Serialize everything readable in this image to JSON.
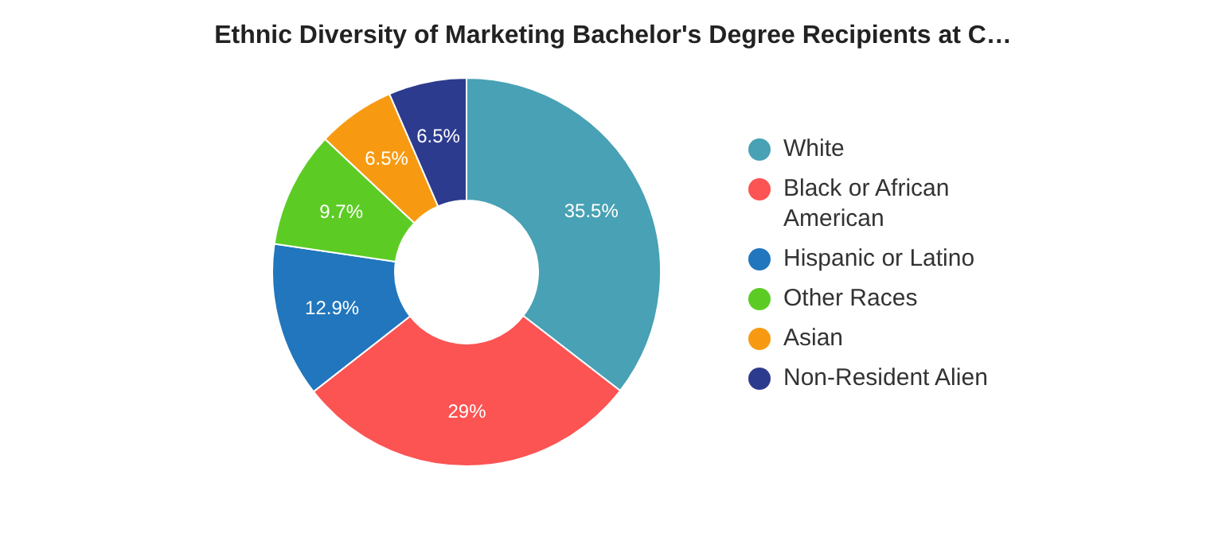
{
  "chart_data": {
    "type": "donut",
    "title": "Ethnic Diversity of Marketing Bachelor's Degree Recipients at C…",
    "categories": [
      "White",
      "Black or African American",
      "Hispanic or Latino",
      "Other Races",
      "Asian",
      "Non-Resident Alien"
    ],
    "values": [
      35.5,
      29,
      12.9,
      9.7,
      6.5,
      6.5
    ],
    "value_labels": [
      "35.5%",
      "29%",
      "12.9%",
      "9.7%",
      "6.5%",
      "6.5%"
    ],
    "colors": [
      "#48a1b4",
      "#fc5353",
      "#2176bd",
      "#5ccc25",
      "#f79a12",
      "#2d3b8e"
    ],
    "legend": "right"
  }
}
